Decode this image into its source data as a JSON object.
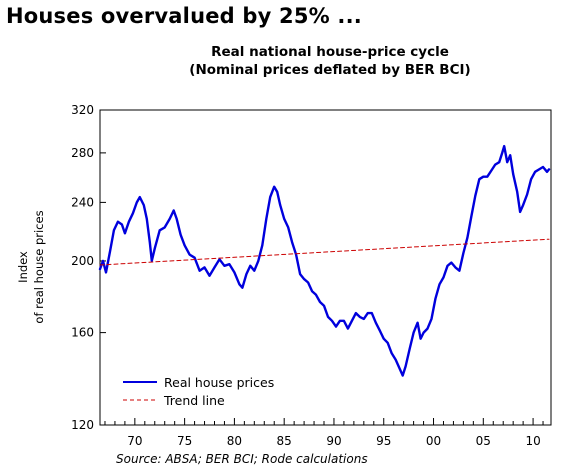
{
  "headline": "Houses overvalued by 25% ...",
  "source": "Source: ABSA; BER BCI; Rode calculations",
  "chart_data": {
    "type": "line",
    "title": [
      "Real national house-price cycle",
      "(Nominal prices deflated by BER BCI)"
    ],
    "ylabel": [
      "Index",
      "of real house prices"
    ],
    "xlabel": "",
    "y_scale": "log",
    "ylim": [
      120,
      320
    ],
    "y_ticks": [
      120,
      160,
      200,
      240,
      280,
      320
    ],
    "xlim": [
      1966.5,
      2011.8
    ],
    "x_ticks": [
      1970,
      1975,
      1980,
      1985,
      1990,
      1995,
      2000,
      2005,
      2010
    ],
    "x_tick_labels": [
      "70",
      "75",
      "80",
      "85",
      "90",
      "95",
      "00",
      "05",
      "10"
    ],
    "grid": false,
    "legend_position": "bottom-left",
    "series": [
      {
        "name": "Real house prices",
        "color": "#0000dd",
        "style": "solid",
        "points": [
          [
            1966.5,
            195
          ],
          [
            1966.8,
            200
          ],
          [
            1967.1,
            193
          ],
          [
            1967.5,
            206
          ],
          [
            1967.9,
            220
          ],
          [
            1968.3,
            226
          ],
          [
            1968.7,
            224
          ],
          [
            1969.0,
            218
          ],
          [
            1969.4,
            226
          ],
          [
            1969.8,
            232
          ],
          [
            1970.2,
            240
          ],
          [
            1970.5,
            244
          ],
          [
            1970.9,
            238
          ],
          [
            1971.2,
            228
          ],
          [
            1971.5,
            212
          ],
          [
            1971.7,
            200
          ],
          [
            1972.0,
            208
          ],
          [
            1972.5,
            220
          ],
          [
            1973.0,
            222
          ],
          [
            1973.5,
            228
          ],
          [
            1973.9,
            234
          ],
          [
            1974.2,
            228
          ],
          [
            1974.6,
            217
          ],
          [
            1975.0,
            210
          ],
          [
            1975.5,
            204
          ],
          [
            1976.0,
            202
          ],
          [
            1976.5,
            194
          ],
          [
            1977.0,
            196
          ],
          [
            1977.5,
            191
          ],
          [
            1978.0,
            196
          ],
          [
            1978.5,
            201
          ],
          [
            1979.0,
            197
          ],
          [
            1979.5,
            198
          ],
          [
            1980.0,
            193
          ],
          [
            1980.5,
            186
          ],
          [
            1980.8,
            184
          ],
          [
            1981.2,
            192
          ],
          [
            1981.6,
            197
          ],
          [
            1982.0,
            194
          ],
          [
            1982.4,
            200
          ],
          [
            1982.8,
            210
          ],
          [
            1983.2,
            228
          ],
          [
            1983.6,
            244
          ],
          [
            1984.0,
            252
          ],
          [
            1984.3,
            248
          ],
          [
            1984.6,
            238
          ],
          [
            1985.0,
            228
          ],
          [
            1985.4,
            222
          ],
          [
            1985.8,
            212
          ],
          [
            1986.2,
            204
          ],
          [
            1986.6,
            192
          ],
          [
            1987.0,
            189
          ],
          [
            1987.4,
            187
          ],
          [
            1987.8,
            182
          ],
          [
            1988.2,
            180
          ],
          [
            1988.6,
            176
          ],
          [
            1989.0,
            174
          ],
          [
            1989.4,
            168
          ],
          [
            1989.8,
            166
          ],
          [
            1990.2,
            163
          ],
          [
            1990.6,
            166
          ],
          [
            1991.0,
            166
          ],
          [
            1991.4,
            162
          ],
          [
            1991.8,
            166
          ],
          [
            1992.2,
            170
          ],
          [
            1992.6,
            168
          ],
          [
            1993.0,
            167
          ],
          [
            1993.4,
            170
          ],
          [
            1993.8,
            170
          ],
          [
            1994.2,
            165
          ],
          [
            1994.6,
            161
          ],
          [
            1995.0,
            157
          ],
          [
            1995.4,
            155
          ],
          [
            1995.8,
            150
          ],
          [
            1996.2,
            147
          ],
          [
            1996.6,
            143
          ],
          [
            1996.9,
            140
          ],
          [
            1997.2,
            144
          ],
          [
            1997.6,
            152
          ],
          [
            1998.0,
            160
          ],
          [
            1998.4,
            165
          ],
          [
            1998.7,
            157
          ],
          [
            1999.0,
            160
          ],
          [
            1999.4,
            162
          ],
          [
            1999.8,
            167
          ],
          [
            2000.2,
            178
          ],
          [
            2000.6,
            186
          ],
          [
            2001.0,
            190
          ],
          [
            2001.4,
            197
          ],
          [
            2001.8,
            199
          ],
          [
            2002.2,
            196
          ],
          [
            2002.6,
            194
          ],
          [
            2003.0,
            205
          ],
          [
            2003.4,
            215
          ],
          [
            2003.8,
            230
          ],
          [
            2004.2,
            245
          ],
          [
            2004.6,
            258
          ],
          [
            2005.0,
            260
          ],
          [
            2005.4,
            260
          ],
          [
            2005.8,
            265
          ],
          [
            2006.2,
            270
          ],
          [
            2006.6,
            272
          ],
          [
            2006.9,
            280
          ],
          [
            2007.1,
            286
          ],
          [
            2007.4,
            272
          ],
          [
            2007.7,
            278
          ],
          [
            2008.0,
            262
          ],
          [
            2008.4,
            248
          ],
          [
            2008.7,
            233
          ],
          [
            2009.0,
            238
          ],
          [
            2009.4,
            246
          ],
          [
            2009.8,
            258
          ],
          [
            2010.2,
            264
          ],
          [
            2010.6,
            266
          ],
          [
            2011.0,
            268
          ],
          [
            2011.4,
            264
          ],
          [
            2011.6,
            266
          ]
        ]
      },
      {
        "name": "Trend line",
        "color": "#cc0000",
        "style": "dashed",
        "points": [
          [
            1966.5,
            197.5
          ],
          [
            2011.6,
            214
          ]
        ]
      }
    ]
  }
}
